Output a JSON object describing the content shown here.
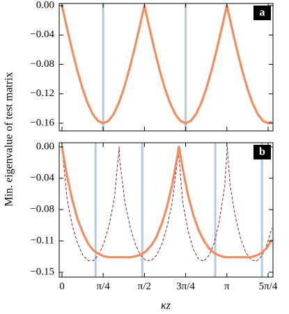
{
  "chart_data": [
    {
      "type": "line",
      "panel": "a",
      "ylabel": "Min. eigenvalue of test matrix",
      "xlim": [
        -0.053,
        4.02
      ],
      "ylim": [
        -0.1704,
        0.0028
      ],
      "yticks": [
        {
          "value": 0,
          "label": "0.00"
        },
        {
          "value": -0.04,
          "label": "−0.04"
        },
        {
          "value": -0.08,
          "label": "−0.08"
        },
        {
          "value": -0.12,
          "label": "−0.12"
        },
        {
          "value": -0.16,
          "label": "−0.16"
        }
      ],
      "vlines": [
        0.785,
        2.356
      ],
      "vline_color": "#b3c9e2",
      "series": [
        {
          "color": "#f58b5c",
          "dashed": false,
          "x": [
            0,
            0.098,
            0.196,
            0.295,
            0.393,
            0.491,
            0.589,
            0.687,
            0.785,
            0.884,
            0.982,
            1.08,
            1.178,
            1.276,
            1.374,
            1.473,
            1.571,
            1.669,
            1.767,
            1.865,
            1.963,
            2.062,
            2.16,
            2.258,
            2.356,
            2.454,
            2.553,
            2.651,
            2.749,
            2.847,
            2.945,
            3.043,
            3.142,
            3.24,
            3.338,
            3.436,
            3.534,
            3.632,
            3.731,
            3.829,
            3.927,
            4.0
          ],
          "values": [
            0,
            -0.0312,
            -0.0612,
            -0.0889,
            -0.1131,
            -0.133,
            -0.1478,
            -0.1569,
            -0.16,
            -0.1569,
            -0.1478,
            -0.133,
            -0.1131,
            -0.0889,
            -0.0612,
            -0.0312,
            0,
            -0.0312,
            -0.0612,
            -0.0889,
            -0.1131,
            -0.133,
            -0.1478,
            -0.1569,
            -0.16,
            -0.1569,
            -0.1478,
            -0.133,
            -0.1131,
            -0.0889,
            -0.0612,
            -0.0312,
            0,
            -0.0312,
            -0.0612,
            -0.0889,
            -0.1131,
            -0.133,
            -0.1478,
            -0.1569,
            -0.16,
            -0.158
          ]
        }
      ]
    },
    {
      "type": "line",
      "panel": "b",
      "xlabel": "κz",
      "xlim": [
        -0.053,
        4.02
      ],
      "ylim": [
        -0.1558,
        0.005
      ],
      "xticks": [
        {
          "value": 0,
          "label": "0"
        },
        {
          "value": 0.785,
          "label": "π/4"
        },
        {
          "value": 1.571,
          "label": "π/2"
        },
        {
          "value": 2.356,
          "label": "3π/4"
        },
        {
          "value": 3.142,
          "label": "π"
        },
        {
          "value": 3.927,
          "label": "5π/4"
        }
      ],
      "yticks": [
        {
          "value": 0,
          "label": "0.00"
        },
        {
          "value": -0.0375,
          "label": "−0.04"
        },
        {
          "value": -0.075,
          "label": "−0.08"
        },
        {
          "value": -0.1125,
          "label": "−0.11"
        },
        {
          "value": -0.15,
          "label": "−0.15"
        }
      ],
      "vlines": [
        0.64,
        1.53,
        2.92,
        3.81
      ],
      "vline_color": "#b3c9e2",
      "series": [
        {
          "color": "#8b1a1a",
          "dashed": true,
          "x": [
            0,
            0.1,
            0.2,
            0.3,
            0.4,
            0.5,
            0.6,
            0.7,
            0.8,
            0.9,
            1.0,
            1.09,
            1.1,
            1.2,
            1.3,
            1.4,
            1.5,
            1.6,
            1.7,
            1.8,
            1.9,
            2.0,
            2.1,
            2.2,
            2.21,
            2.3,
            2.4,
            2.5,
            2.6,
            2.7,
            2.8,
            2.9,
            3.0,
            3.1,
            3.15,
            3.2,
            3.3,
            3.4,
            3.5,
            3.6,
            3.7,
            3.8,
            3.9,
            4.0
          ],
          "values": [
            0,
            -0.064,
            -0.095,
            -0.116,
            -0.13,
            -0.136,
            -0.136,
            -0.129,
            -0.115,
            -0.093,
            -0.061,
            0,
            -0.016,
            -0.067,
            -0.096,
            -0.117,
            -0.13,
            -0.136,
            -0.136,
            -0.13,
            -0.117,
            -0.096,
            -0.067,
            -0.016,
            0,
            -0.066,
            -0.1,
            -0.122,
            -0.134,
            -0.137,
            -0.13,
            -0.115,
            -0.088,
            -0.047,
            0,
            -0.044,
            -0.083,
            -0.109,
            -0.126,
            -0.135,
            -0.137,
            -0.131,
            -0.118,
            -0.097
          ]
        },
        {
          "color": "#f58b5c",
          "dashed": false,
          "x": [
            0,
            0.1,
            0.2,
            0.3,
            0.4,
            0.5,
            0.6,
            0.7,
            0.8,
            0.9,
            1.0,
            1.1,
            1.2,
            1.3,
            1.4,
            1.5,
            1.6,
            1.7,
            1.8,
            1.9,
            2.0,
            2.1,
            2.2,
            2.23,
            2.3,
            2.4,
            2.5,
            2.6,
            2.7,
            2.8,
            2.9,
            3.0,
            3.1,
            3.2,
            3.3,
            3.4,
            3.5,
            3.6,
            3.7,
            3.8,
            3.9,
            4.0
          ],
          "values": [
            0,
            -0.036,
            -0.064,
            -0.087,
            -0.103,
            -0.116,
            -0.124,
            -0.128,
            -0.131,
            -0.132,
            -0.132,
            -0.132,
            -0.132,
            -0.132,
            -0.131,
            -0.129,
            -0.125,
            -0.118,
            -0.108,
            -0.092,
            -0.072,
            -0.045,
            -0.011,
            0,
            -0.026,
            -0.057,
            -0.081,
            -0.099,
            -0.112,
            -0.121,
            -0.127,
            -0.13,
            -0.132,
            -0.132,
            -0.132,
            -0.132,
            -0.132,
            -0.132,
            -0.13,
            -0.127,
            -0.121,
            -0.111
          ]
        }
      ]
    }
  ]
}
